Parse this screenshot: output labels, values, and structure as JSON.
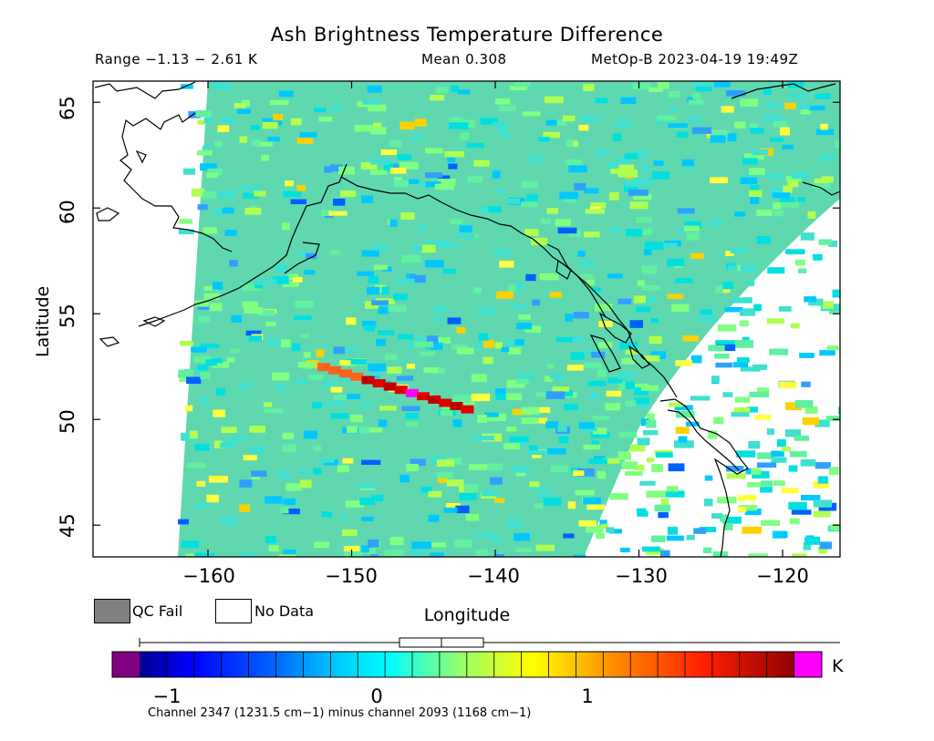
{
  "title": "Ash Brightness Temperature Difference",
  "range_text": "Range −1.13 − 2.61 K",
  "mean_text": "Mean 0.308",
  "satellite_text": "MetOp-B 2023-04-19 19:49Z",
  "x_axis": {
    "label": "Longitude",
    "ticks": [
      -160,
      -150,
      -140,
      -130,
      -120
    ],
    "tick_labels": [
      "−160",
      "−150",
      "−140",
      "−130",
      "−120"
    ],
    "range": [
      -168,
      -116
    ]
  },
  "y_axis": {
    "label": "Latitude",
    "ticks": [
      45,
      50,
      55,
      60,
      65
    ],
    "tick_labels": [
      "45",
      "50",
      "55",
      "60",
      "65"
    ],
    "range": [
      43.5,
      66
    ]
  },
  "legend": {
    "qc_fail": "QC Fail",
    "no_data": "No Data",
    "qc_fail_color": "#808080",
    "no_data_color": "#ffffff"
  },
  "colorbar": {
    "ticks": [
      -1,
      0,
      1
    ],
    "tick_labels": [
      "−1",
      "0",
      "1"
    ],
    "range": [
      -1.13,
      2.61
    ],
    "unit": "K",
    "underflow_color": "#800080",
    "overflow_color": "#ff00ff",
    "colors": [
      "#000090",
      "#0000ff",
      "#0060ff",
      "#00a0ff",
      "#00e0ff",
      "#40ffc0",
      "#a0ff60",
      "#ffff00",
      "#ffc000",
      "#ff8000",
      "#ff4000",
      "#e00000",
      "#900000"
    ]
  },
  "footnote": "Channel 2347 (1231.5 cm−1) minus channel 2093 (1168 cm−1)",
  "chart_data": {
    "type": "heatmap",
    "title": "Ash Brightness Temperature Difference",
    "xlabel": "Longitude",
    "ylabel": "Latitude",
    "xlim": [
      -168,
      -116
    ],
    "ylim": [
      43.5,
      66
    ],
    "value_range": [
      -1.13,
      2.61
    ],
    "mean": 0.308,
    "unit": "K",
    "ash_plume_feature": {
      "values_approx": [
        1.6,
        2.3,
        2.61
      ],
      "lon_span": [
        -152,
        -142
      ],
      "lat_span": [
        50.5,
        52.5
      ]
    }
  }
}
